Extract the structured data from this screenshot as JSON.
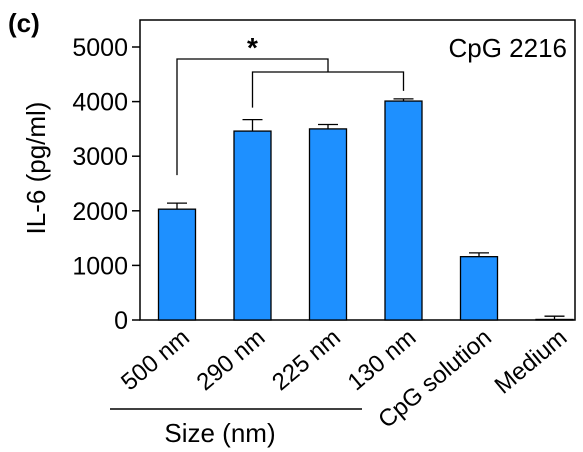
{
  "panel_label": "(c)",
  "chart_data": {
    "type": "bar",
    "title": "",
    "annotation": "CpG 2216",
    "xlabel": "",
    "ylabel": "IL-6 (pg/ml)",
    "ylim": [
      0,
      5000
    ],
    "yticks": [
      0,
      1000,
      2000,
      3000,
      4000,
      5000
    ],
    "categories": [
      "500 nm",
      "290 nm",
      "225 nm",
      "130 nm",
      "CpG solution",
      "Medium"
    ],
    "values": [
      2030,
      3460,
      3500,
      4010,
      1160,
      10
    ],
    "errors": [
      110,
      210,
      80,
      40,
      70,
      60
    ],
    "bar_color": "#1E90FF",
    "group_label": "Size (nm)",
    "group_members": [
      "500 nm",
      "290 nm",
      "225 nm",
      "130 nm"
    ],
    "significance": {
      "symbol": "*",
      "left": [
        "500 nm"
      ],
      "right": [
        "290 nm",
        "130 nm"
      ]
    },
    "grid": false,
    "legend": "none"
  }
}
